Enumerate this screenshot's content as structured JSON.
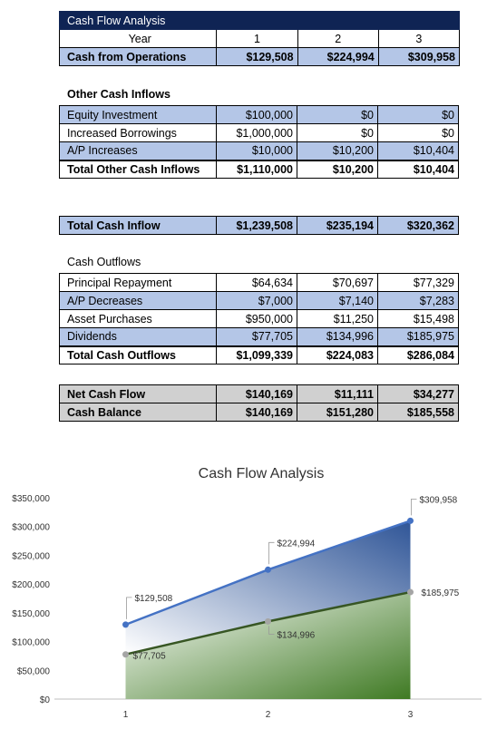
{
  "table_title": "Cash Flow Analysis",
  "year_header": "Year",
  "years": [
    "1",
    "2",
    "3"
  ],
  "operations": {
    "label": "Cash from Operations",
    "values": [
      "$129,508",
      "$224,994",
      "$309,958"
    ]
  },
  "other_inflows": {
    "heading": "Other Cash Inflows",
    "rows": [
      {
        "label": "Equity Investment",
        "values": [
          "$100,000",
          "$0",
          "$0"
        ]
      },
      {
        "label": "Increased Borrowings",
        "values": [
          "$1,000,000",
          "$0",
          "$0"
        ]
      },
      {
        "label": "A/P Increases",
        "values": [
          "$10,000",
          "$10,200",
          "$10,404"
        ]
      }
    ],
    "total": {
      "label": "Total Other Cash Inflows",
      "values": [
        "$1,110,000",
        "$10,200",
        "$10,404"
      ]
    }
  },
  "total_inflow": {
    "label": "Total Cash Inflow",
    "values": [
      "$1,239,508",
      "$235,194",
      "$320,362"
    ]
  },
  "outflows": {
    "heading": "Cash Outflows",
    "rows": [
      {
        "label": "Principal Repayment",
        "values": [
          "$64,634",
          "$70,697",
          "$77,329"
        ]
      },
      {
        "label": "A/P Decreases",
        "values": [
          "$7,000",
          "$7,140",
          "$7,283"
        ]
      },
      {
        "label": "Asset Purchases",
        "values": [
          "$950,000",
          "$11,250",
          "$15,498"
        ]
      },
      {
        "label": "Dividends",
        "values": [
          "$77,705",
          "$134,996",
          "$185,975"
        ]
      }
    ],
    "total": {
      "label": "Total Cash Outflows",
      "values": [
        "$1,099,339",
        "$224,083",
        "$286,084"
      ]
    }
  },
  "net_cash_flow": {
    "label": "Net Cash Flow",
    "values": [
      "$140,169",
      "$11,111",
      "$34,277"
    ]
  },
  "cash_balance": {
    "label": "Cash Balance",
    "values": [
      "$140,169",
      "$151,280",
      "$185,558"
    ]
  },
  "chart_data": {
    "type": "area",
    "title": "Cash Flow Analysis",
    "categories": [
      "1",
      "2",
      "3"
    ],
    "ylim": [
      0,
      350000
    ],
    "yticks": [
      "$0",
      "$50,000",
      "$100,000",
      "$150,000",
      "$200,000",
      "$250,000",
      "$300,000",
      "$350,000"
    ],
    "grid": false,
    "series": [
      {
        "values": [
          129508,
          224994,
          309958
        ],
        "labels": [
          "$129,508",
          "$224,994",
          "$309,958"
        ],
        "color": "#4472c4"
      },
      {
        "values": [
          77705,
          134996,
          185975
        ],
        "labels": [
          "$77,705",
          "$134,996",
          "$185,975"
        ],
        "color": "#375623"
      }
    ]
  }
}
